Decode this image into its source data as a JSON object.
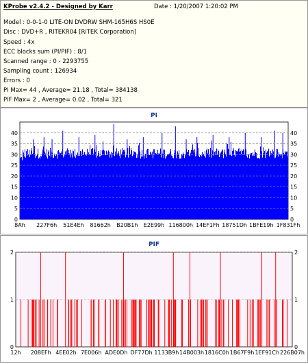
{
  "header": {
    "app_title": "KProbe v2.4.2 - Designed by Karr",
    "date": "Date : 1/20/2007 1:20:02 PM",
    "lines": [
      "Model : 0-0-1-0 LITE-ON DVDRW SHM-165H6S HS0E",
      "Disc : DVD+R , RITEKR04 [RiTEK Corporation]",
      "Speed : 4x",
      "ECC blocks sum (PI/PIF) : 8/1",
      "Scanned range : 0 - 2293755",
      "Sampling count : 126934",
      "Errors : 0",
      "PI Max= 44 , Average= 21.18 , Total= 384138",
      "PIF Max= 2 , Average= 0.02 , Total= 321"
    ]
  },
  "chart_data": [
    {
      "type": "bar",
      "title": "PI",
      "series_color": "#0000ff",
      "ylim": [
        0,
        45
      ],
      "yticks": [
        0,
        5,
        10,
        15,
        20,
        25,
        30,
        35,
        40
      ],
      "xtick_labels": [
        "8Ah",
        "227F6h",
        "51E4Eh",
        "81662h",
        "B20B1h",
        "E2E99h",
        "116800h",
        "14EF1Fh",
        "18751Dh",
        "1BFE19h",
        "1F831Fh"
      ],
      "grid": true,
      "baseline_range": [
        28,
        33
      ],
      "peaks": [
        {
          "pos": 0.05,
          "value": 37
        },
        {
          "pos": 0.09,
          "value": 38
        },
        {
          "pos": 0.12,
          "value": 37
        },
        {
          "pos": 0.16,
          "value": 41
        },
        {
          "pos": 0.22,
          "value": 38
        },
        {
          "pos": 0.28,
          "value": 39
        },
        {
          "pos": 0.31,
          "value": 36
        },
        {
          "pos": 0.35,
          "value": 44
        },
        {
          "pos": 0.4,
          "value": 37
        },
        {
          "pos": 0.46,
          "value": 38
        },
        {
          "pos": 0.53,
          "value": 40
        },
        {
          "pos": 0.58,
          "value": 43
        },
        {
          "pos": 0.62,
          "value": 37
        },
        {
          "pos": 0.66,
          "value": 38
        },
        {
          "pos": 0.72,
          "value": 39
        },
        {
          "pos": 0.78,
          "value": 38
        },
        {
          "pos": 0.84,
          "value": 40
        },
        {
          "pos": 0.9,
          "value": 38
        },
        {
          "pos": 0.95,
          "value": 41
        },
        {
          "pos": 0.98,
          "value": 40
        }
      ]
    },
    {
      "type": "bar",
      "title": "PIF",
      "series_color": "#ff0000",
      "ylim": [
        0,
        2
      ],
      "yticks": [
        0,
        1,
        2
      ],
      "xtick_labels": [
        "12h",
        "208EFh",
        "4EE02h",
        "7E006h",
        "ADE0Dh",
        "DF77Dh",
        "1133B9h",
        "14B003h",
        "1816C0h",
        "1B67F9h",
        "1EF91Ch",
        "226B07h"
      ],
      "grid": true,
      "value2_positions": [
        0.09,
        0.18,
        0.39,
        0.57,
        0.63,
        0.74,
        0.89,
        0.94
      ],
      "value1_count": 130
    }
  ]
}
